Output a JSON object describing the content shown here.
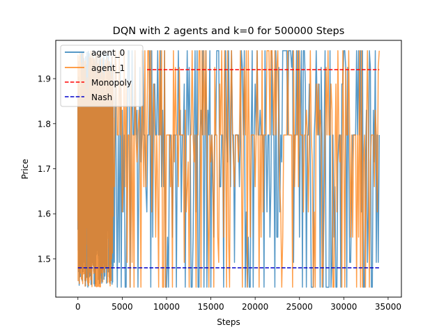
{
  "chart_data": {
    "type": "line",
    "title": "DQN with 2 agents and k=0 for 500000 Steps",
    "xlabel": "Steps",
    "ylabel": "Price",
    "xlim": [
      -2500,
      36500
    ],
    "ylim": [
      1.415,
      1.985
    ],
    "xticks": [
      0,
      5000,
      10000,
      15000,
      20000,
      25000,
      30000,
      35000
    ],
    "yticks": [
      1.5,
      1.6,
      1.7,
      1.8,
      1.9
    ],
    "grid": false,
    "legend_position": "top-left",
    "price_levels": [
      1.437,
      1.492,
      1.548,
      1.604,
      1.66,
      1.715,
      1.775,
      1.83,
      1.888,
      1.925,
      1.962
    ],
    "series": [
      {
        "name": "agent_0",
        "color": "#1f77b4",
        "x_range": [
          0,
          34000
        ],
        "dense_band": {
          "x_end": 4000,
          "y_range": [
            1.437,
            1.962
          ]
        },
        "x": [
          4000,
          5000,
          6000,
          7000,
          8000,
          9000,
          10000,
          11000,
          12000,
          13000,
          14000,
          15000,
          16000,
          17000,
          18000,
          19000,
          20000,
          21000,
          22000,
          23000,
          24000,
          25000,
          26000,
          27000,
          28000,
          29000,
          30000,
          31000,
          32000,
          33000,
          34000
        ],
        "y": [
          1.775,
          1.83,
          1.715,
          1.925,
          1.775,
          1.962,
          1.437,
          1.775,
          1.888,
          1.548,
          1.775,
          1.437,
          1.66,
          1.962,
          1.775,
          1.604,
          1.888,
          1.437,
          1.775,
          1.715,
          1.962,
          1.548,
          1.775,
          1.83,
          1.437,
          1.66,
          1.962,
          1.775,
          1.604,
          1.925,
          1.775
        ]
      },
      {
        "name": "agent_1",
        "color": "#ff7f0e",
        "x_range": [
          0,
          34000
        ],
        "dense_band": {
          "x_end": 4000,
          "y_range": [
            1.437,
            1.962
          ]
        },
        "x": [
          4000,
          5000,
          6000,
          7000,
          8000,
          9000,
          10000,
          11000,
          12000,
          13000,
          14000,
          15000,
          16000,
          17000,
          18000,
          19000,
          20000,
          21000,
          22000,
          23000,
          24000,
          25000,
          26000,
          27000,
          28000,
          29000,
          30000,
          31000,
          32000,
          33000,
          34000
        ],
        "y": [
          1.715,
          1.604,
          1.888,
          1.775,
          1.962,
          1.66,
          1.775,
          1.925,
          1.492,
          1.775,
          1.962,
          1.715,
          1.888,
          1.548,
          1.775,
          1.962,
          1.66,
          1.775,
          1.888,
          1.437,
          1.775,
          1.962,
          1.604,
          1.775,
          1.925,
          1.715,
          1.775,
          1.548,
          1.962,
          1.715,
          1.962
        ]
      }
    ],
    "reference_lines": [
      {
        "name": "Monopoly",
        "y": 1.92,
        "x_start": 7800,
        "x_end": 34000,
        "color": "#ff0000",
        "style": "dashed"
      },
      {
        "name": "Nash",
        "y": 1.48,
        "x_start": 0,
        "x_end": 34000,
        "color": "#0000cc",
        "style": "dashed"
      }
    ],
    "legend": [
      "agent_0",
      "agent_1",
      "Monopoly",
      "Nash"
    ]
  }
}
